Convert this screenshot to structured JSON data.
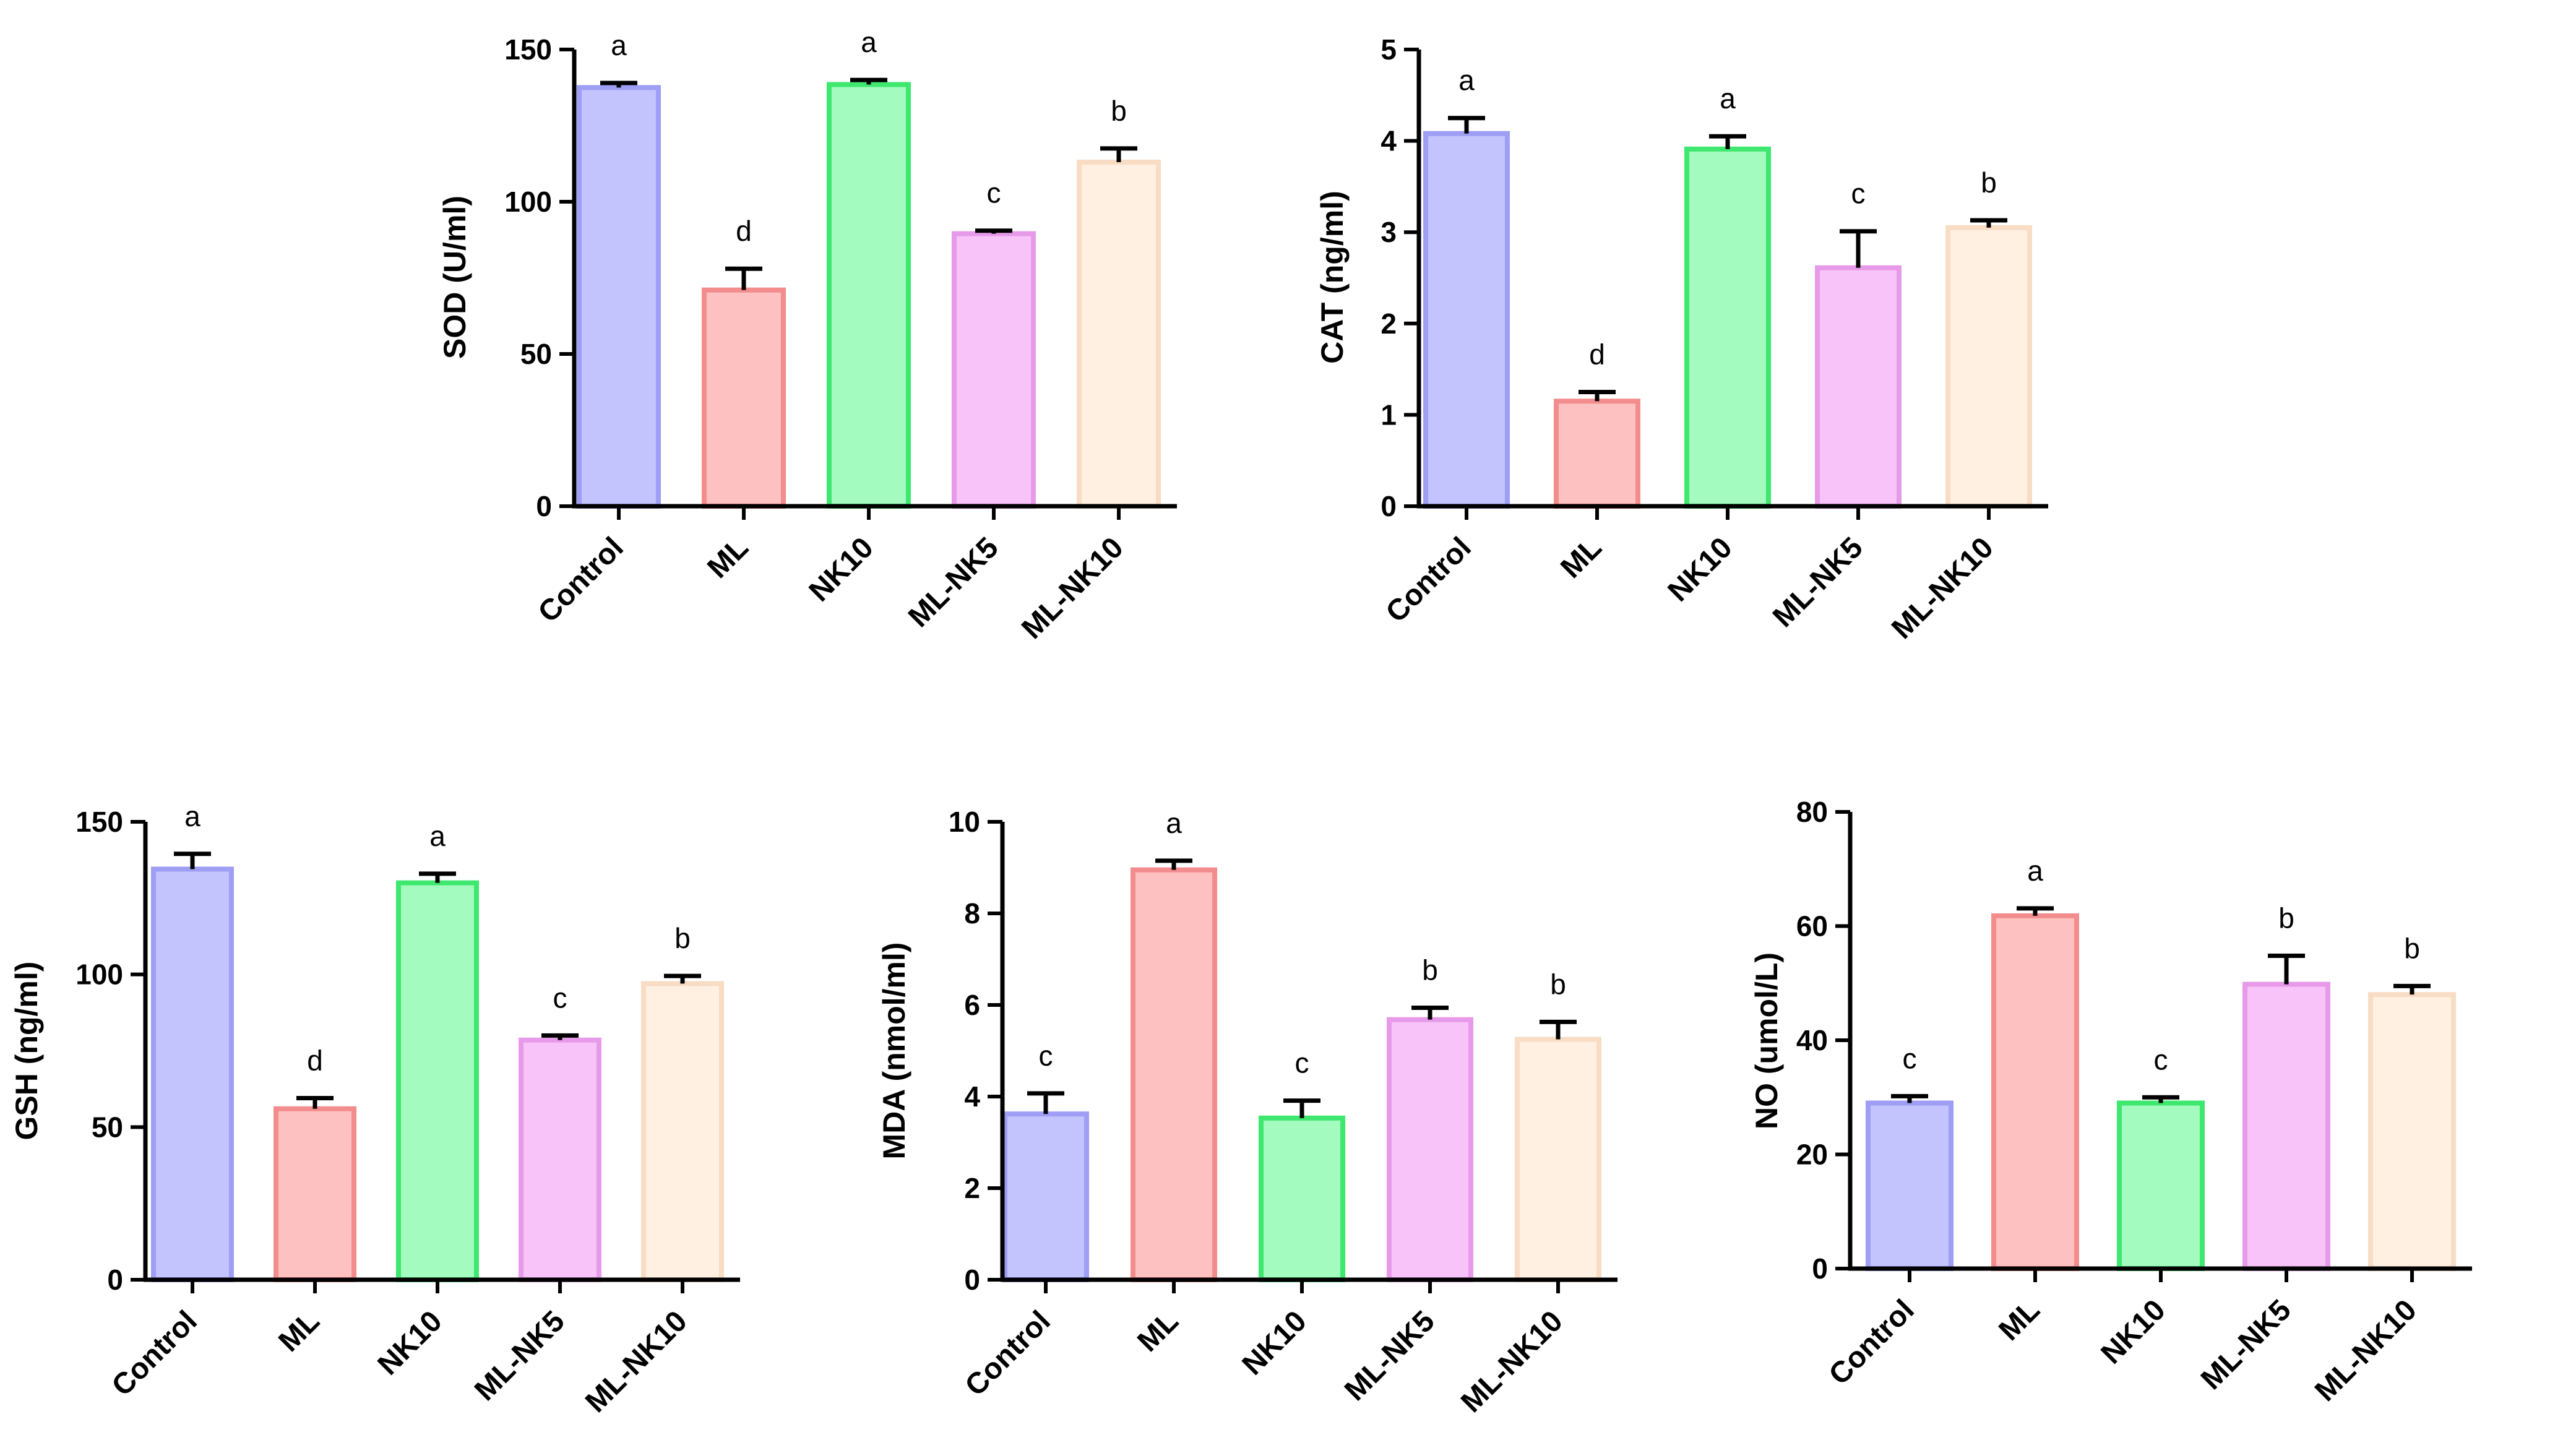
{
  "figure_colors": {
    "Control": {
      "fill": "#c3c3fd",
      "stroke": "#9e9ef5"
    },
    "ML": {
      "fill": "#fdc1c1",
      "stroke": "#f38c8c"
    },
    "NK10": {
      "fill": "#a4fbc0",
      "stroke": "#3ee86e"
    },
    "ML-NK5": {
      "fill": "#f8c3f8",
      "stroke": "#e79ae9"
    },
    "ML-NK10": {
      "fill": "#fff0e2",
      "stroke": "#f8dcc4"
    }
  },
  "chart_data": [
    {
      "id": "sod",
      "type": "bar",
      "ylabel": "SOD (U/ml)",
      "categories": [
        "Control",
        "ML",
        "NK10",
        "ML-NK5",
        "ML-NK10"
      ],
      "values": [
        137.5,
        71,
        138.5,
        89.5,
        113
      ],
      "errors": [
        1.5,
        7,
        1.5,
        1,
        4.5
      ],
      "significance": [
        "a",
        "d",
        "a",
        "c",
        "b"
      ],
      "ylim": [
        0,
        150
      ],
      "yticks": [
        0,
        50,
        100,
        150
      ],
      "ytick_labels": [
        "0",
        "50",
        "100",
        "150"
      ]
    },
    {
      "id": "cat",
      "type": "bar",
      "ylabel": "CAT (ng/ml)",
      "categories": [
        "Control",
        "ML",
        "NK10",
        "ML-NK5",
        "ML-NK10"
      ],
      "values": [
        4.08,
        1.15,
        3.91,
        2.61,
        3.05
      ],
      "errors": [
        0.17,
        0.1,
        0.14,
        0.4,
        0.08
      ],
      "significance": [
        "a",
        "d",
        "a",
        "c",
        "b"
      ],
      "ylim": [
        0,
        5
      ],
      "yticks": [
        0,
        1,
        2,
        3,
        4,
        5
      ],
      "ytick_labels": [
        "0",
        "1",
        "2",
        "3",
        "4",
        "5"
      ]
    },
    {
      "id": "gsh",
      "type": "bar",
      "ylabel": "GSH (ng/ml)",
      "categories": [
        "Control",
        "ML",
        "NK10",
        "ML-NK5",
        "ML-NK10"
      ],
      "values": [
        134.5,
        56,
        130,
        78.5,
        97
      ],
      "errors": [
        5,
        3.5,
        3,
        1.5,
        2.5
      ],
      "significance": [
        "a",
        "d",
        "a",
        "c",
        "b"
      ],
      "ylim": [
        0,
        150
      ],
      "yticks": [
        0,
        50,
        100,
        150
      ],
      "ytick_labels": [
        "0",
        "50",
        "100",
        "150"
      ]
    },
    {
      "id": "mda",
      "type": "bar",
      "ylabel": "MDA (nmol/ml)",
      "categories": [
        "Control",
        "ML",
        "NK10",
        "ML-NK5",
        "ML-NK10"
      ],
      "values": [
        3.62,
        8.95,
        3.53,
        5.68,
        5.25
      ],
      "errors": [
        0.45,
        0.2,
        0.38,
        0.26,
        0.38
      ],
      "significance": [
        "c",
        "a",
        "c",
        "b",
        "b"
      ],
      "ylim": [
        0,
        10
      ],
      "yticks": [
        0,
        2,
        4,
        6,
        8,
        10
      ],
      "ytick_labels": [
        "0",
        "2",
        "4",
        "6",
        "8",
        "10"
      ]
    },
    {
      "id": "no",
      "type": "bar",
      "ylabel": "NO (umol/L)",
      "categories": [
        "Control",
        "ML",
        "NK10",
        "ML-NK5",
        "ML-NK10"
      ],
      "values": [
        29,
        61.8,
        29,
        49.8,
        48
      ],
      "errors": [
        1.2,
        1.3,
        1,
        5,
        1.5
      ],
      "significance": [
        "c",
        "a",
        "c",
        "b",
        "b"
      ],
      "ylim": [
        0,
        80
      ],
      "yticks": [
        0,
        20,
        40,
        60,
        80
      ],
      "ytick_labels": [
        "0",
        "20",
        "40",
        "60",
        "80"
      ]
    }
  ]
}
